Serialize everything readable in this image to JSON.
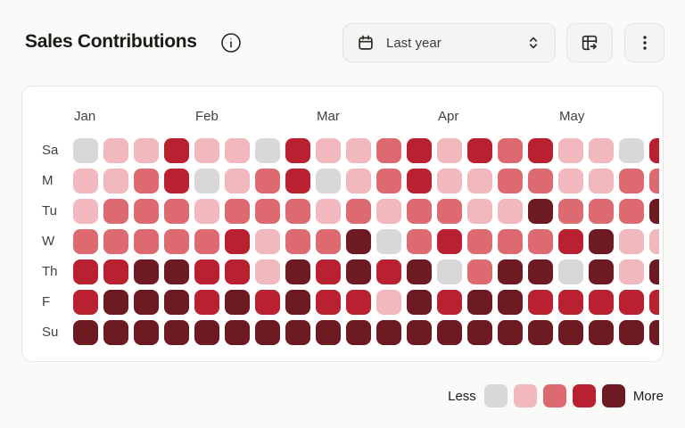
{
  "header": {
    "title": "Sales Contributions",
    "range_select": {
      "value": "Last year"
    }
  },
  "chart_data": {
    "type": "heatmap",
    "title": "Sales Contributions",
    "x_labels": [
      "Jan",
      "Feb",
      "Mar",
      "Apr",
      "May"
    ],
    "x_label_column_index": [
      0,
      4,
      8,
      12,
      16
    ],
    "y_labels": [
      "Sa",
      "M",
      "Tu",
      "W",
      "Th",
      "F",
      "Su"
    ],
    "num_columns": 20,
    "last_column_clipped": true,
    "palette": [
      "#d8d8d8",
      "#f1b8bd",
      "#dd6a70",
      "#b92030",
      "#6d1a22"
    ],
    "values": [
      [
        0,
        1,
        1,
        3,
        1,
        1,
        0,
        3,
        1,
        1,
        2,
        3,
        1,
        3,
        2,
        3,
        1,
        1,
        0,
        3
      ],
      [
        1,
        1,
        2,
        3,
        0,
        1,
        2,
        3,
        0,
        1,
        2,
        3,
        1,
        1,
        2,
        2,
        1,
        1,
        2,
        2
      ],
      [
        1,
        2,
        2,
        2,
        1,
        2,
        2,
        2,
        1,
        2,
        1,
        2,
        2,
        1,
        1,
        4,
        2,
        2,
        2,
        4
      ],
      [
        2,
        2,
        2,
        2,
        2,
        3,
        1,
        2,
        2,
        4,
        0,
        2,
        3,
        2,
        2,
        2,
        3,
        4,
        1,
        1
      ],
      [
        3,
        3,
        4,
        4,
        3,
        3,
        1,
        4,
        3,
        4,
        3,
        4,
        0,
        2,
        4,
        4,
        0,
        4,
        1,
        4
      ],
      [
        3,
        4,
        4,
        4,
        3,
        4,
        3,
        4,
        3,
        3,
        1,
        4,
        3,
        4,
        4,
        3,
        3,
        3,
        3,
        3
      ],
      [
        4,
        4,
        4,
        4,
        4,
        4,
        4,
        4,
        4,
        4,
        4,
        4,
        4,
        4,
        4,
        4,
        4,
        4,
        4,
        4
      ]
    ],
    "legend": {
      "less_label": "Less",
      "more_label": "More",
      "swatch_levels": [
        0,
        1,
        2,
        3,
        4
      ],
      "position": "bottom-right"
    }
  },
  "icons": {
    "info": "info-circle-icon",
    "calendar": "calendar-icon",
    "chevrons": "chevron-up-down-icon",
    "export": "table-export-icon",
    "menu": "kebab-menu-icon"
  },
  "colors": {
    "page_bg": "#fafaf9",
    "card_bg": "#ffffff",
    "control_bg": "#f4f4f3",
    "border": "#e8e6e3",
    "text_dark": "#1c1917",
    "text_muted": "#44403c"
  }
}
